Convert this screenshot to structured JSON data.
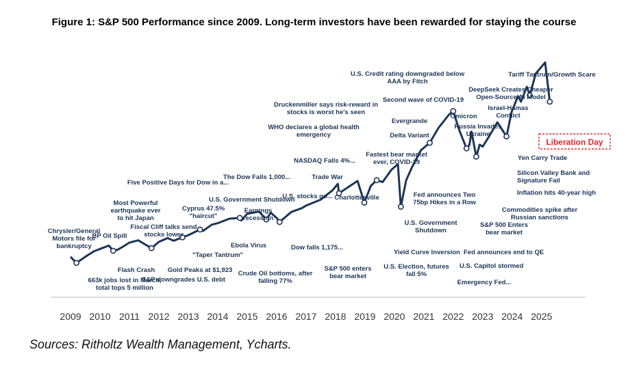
{
  "title": "Figure 1: S&P 500 Performance since 2009. Long-term investors have been rewarded for staying the course",
  "source": "Sources: Ritholtz Wealth Management, Ycharts.",
  "colors": {
    "line": "#1c3556",
    "marker": "#1c3556",
    "highlight": "#e8262b",
    "text": "#1c3556"
  },
  "chart_data": {
    "type": "line",
    "title": "",
    "xlabel": "",
    "ylabel": "",
    "grid": false,
    "legend": "none",
    "x_ticks": [
      "2009",
      "2010",
      "2011",
      "2012",
      "2013",
      "2014",
      "2015",
      "2016",
      "2017",
      "2018",
      "2019",
      "2020",
      "2021",
      "2022",
      "2023",
      "2024",
      "2025"
    ],
    "xlim": [
      2009,
      2025.4
    ],
    "ylim": [
      0,
      6400
    ],
    "series": [
      {
        "points": [
          [
            2009.0,
            900
          ],
          [
            2009.2,
            735
          ],
          [
            2009.5,
            900
          ],
          [
            2009.8,
            1050
          ],
          [
            2010.0,
            1110
          ],
          [
            2010.3,
            1200
          ],
          [
            2010.45,
            1060
          ],
          [
            2010.6,
            1090
          ],
          [
            2010.8,
            1180
          ],
          [
            2011.0,
            1280
          ],
          [
            2011.3,
            1340
          ],
          [
            2011.6,
            1200
          ],
          [
            2011.75,
            1130
          ],
          [
            2012.0,
            1300
          ],
          [
            2012.3,
            1400
          ],
          [
            2012.5,
            1330
          ],
          [
            2012.8,
            1420
          ],
          [
            2013.0,
            1480
          ],
          [
            2013.4,
            1630
          ],
          [
            2013.5,
            1590
          ],
          [
            2013.8,
            1760
          ],
          [
            2014.0,
            1800
          ],
          [
            2014.4,
            1920
          ],
          [
            2014.75,
            1940
          ],
          [
            2014.8,
            1870
          ],
          [
            2015.0,
            2050
          ],
          [
            2015.4,
            2110
          ],
          [
            2015.65,
            1900
          ],
          [
            2015.8,
            2080
          ],
          [
            2016.0,
            1940
          ],
          [
            2016.1,
            1830
          ],
          [
            2016.5,
            2100
          ],
          [
            2016.85,
            2200
          ],
          [
            2017.0,
            2270
          ],
          [
            2017.5,
            2430
          ],
          [
            2017.9,
            2680
          ],
          [
            2018.08,
            2850
          ],
          [
            2018.12,
            2600
          ],
          [
            2018.5,
            2800
          ],
          [
            2018.75,
            2930
          ],
          [
            2018.98,
            2350
          ],
          [
            2019.2,
            2800
          ],
          [
            2019.4,
            2950
          ],
          [
            2019.6,
            2900
          ],
          [
            2019.9,
            3230
          ],
          [
            2020.12,
            3380
          ],
          [
            2020.22,
            2240
          ],
          [
            2020.4,
            2950
          ],
          [
            2020.6,
            3300
          ],
          [
            2020.9,
            3750
          ],
          [
            2021.2,
            3950
          ],
          [
            2021.5,
            4350
          ],
          [
            2021.85,
            4700
          ],
          [
            2022.0,
            4800
          ],
          [
            2022.2,
            4300
          ],
          [
            2022.45,
            3800
          ],
          [
            2022.55,
            3900
          ],
          [
            2022.62,
            4250
          ],
          [
            2022.78,
            3580
          ],
          [
            2022.9,
            3900
          ],
          [
            2023.0,
            3850
          ],
          [
            2023.2,
            4100
          ],
          [
            2023.5,
            4500
          ],
          [
            2023.81,
            4120
          ],
          [
            2023.98,
            4770
          ],
          [
            2024.2,
            5200
          ],
          [
            2024.3,
            5050
          ],
          [
            2024.5,
            5450
          ],
          [
            2024.6,
            5220
          ],
          [
            2024.8,
            5800
          ],
          [
            2025.12,
            6100
          ],
          [
            2025.28,
            5050
          ]
        ]
      }
    ],
    "markers": [
      [
        2009.2,
        735
      ],
      [
        2010.45,
        1060
      ],
      [
        2011.75,
        1130
      ],
      [
        2012.8,
        1420
      ],
      [
        2013.4,
        1630
      ],
      [
        2014.75,
        1940
      ],
      [
        2015.65,
        1900
      ],
      [
        2016.1,
        1830
      ],
      [
        2018.12,
        2600
      ],
      [
        2018.98,
        2350
      ],
      [
        2019.4,
        2950
      ],
      [
        2020.22,
        2240
      ],
      [
        2021.2,
        3950
      ],
      [
        2022.0,
        4800
      ],
      [
        2022.45,
        3800
      ],
      [
        2022.78,
        3580
      ],
      [
        2023.81,
        4120
      ],
      [
        2024.6,
        5220
      ],
      [
        2025.28,
        5050
      ]
    ],
    "annotations": [
      "Chrysler/General Motors file for bankruptcy",
      "663k jobs lost in March, total tops 5 million",
      "BP Oil Spill",
      "Most Powerful earthquake ever to hit Japan",
      "Flash Crash",
      "Five Positive Days for Dow in a...",
      "Fiscal Cliff talks send stocks lower",
      "S&P downgrades U.S. debt",
      "Gold Peaks at $1,923",
      "Cyprus 47.5% \"haircut\"",
      "U.S. Government Shutdown",
      "\"Taper Tantrum\"",
      "Ebola Virus",
      "The Dow Falls 1,000...",
      "Crude Oil bottoms, after falling 77%",
      "Earnings recession",
      "U.S. stocks go...",
      "Dow falls 1,175...",
      "Trade War",
      "Charlottesville",
      "S&P 500 enters bear market",
      "NASDAQ Falls 4%...",
      "Fastest bear market ever, COVID-19",
      "WHO declares a global health emergency",
      "Druckenmiller says risk-reward in stocks is worst he's seen",
      "U.S. Election, futures fall 5%",
      "Yield Curve Inversion",
      "U.S. Government Shutdown",
      "Fed announces Two 75bp Hikes in a Row",
      "Delta Variant",
      "Evergrande",
      "Second wave of COVID-19",
      "U.S. Credit rating downgraded below AAA by Fitch",
      "Omicron",
      "Russia Invades Ukraine",
      "S&P 500 Enters bear market",
      "Fed announces end to QE",
      "U.S. Capitol stormed",
      "Emergency Fed...",
      "Commodities spike after Russian sanctions",
      "Inflation hits 40-year high",
      "Silicon Valley Bank and Signature Fail",
      "Yen Carry Trade",
      "Israel-Hamas Conflict",
      "DeepSeek Creates Cheaper Open-Source AI Model",
      "Tariff Tantrum/Growth Scare"
    ],
    "highlight_annotation": "Liberation Day"
  }
}
